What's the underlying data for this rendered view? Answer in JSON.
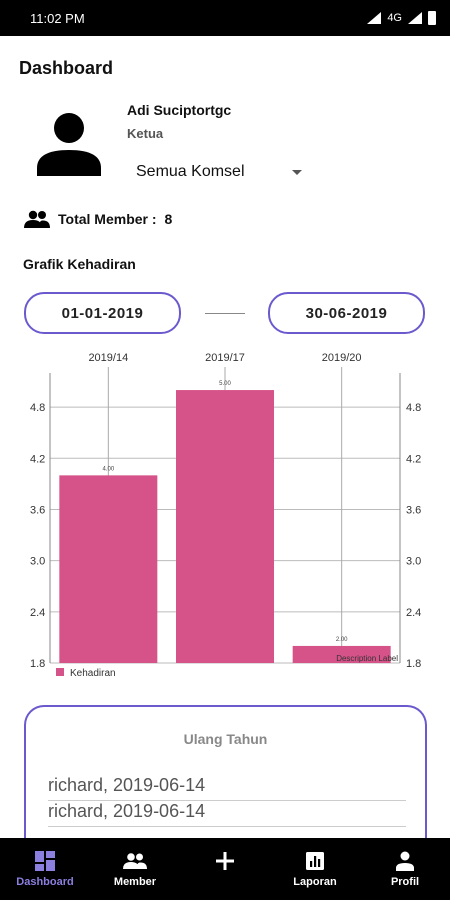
{
  "status_bar": {
    "time": "11:02 PM",
    "network": "4G"
  },
  "page_title": "Dashboard",
  "user": {
    "name": "Adi Suciptortgc",
    "role": "Ketua"
  },
  "komsel_select": {
    "value": "Semua Komsel"
  },
  "total_member": {
    "label": "Total Member :",
    "value": "8"
  },
  "grafik": {
    "title": "Grafik Kehadiran",
    "start_date": "01-01-2019",
    "end_date": "30-06-2019"
  },
  "chart_data": {
    "type": "bar",
    "categories": [
      "2019/14",
      "2019/17",
      "2019/20"
    ],
    "series": [
      {
        "name": "Kehadiran",
        "values": [
          4.0,
          5.0,
          2.0
        ],
        "color": "#d6538a"
      }
    ],
    "value_labels": [
      "4.00",
      "5.00",
      "2.00"
    ],
    "yticks": [
      "1.8",
      "2.4",
      "3.0",
      "3.6",
      "4.2",
      "4.8"
    ],
    "ylim": [
      1.8,
      5.2
    ],
    "description": "Description Label",
    "legend": "bottom-left",
    "grid": true
  },
  "birthday": {
    "title": "Ulang Tahun",
    "items": [
      "richard, 2019-06-14",
      "richard, 2019-06-14"
    ]
  },
  "nav": {
    "items": [
      {
        "label": "Dashboard",
        "icon": "dashboard-icon"
      },
      {
        "label": "Member",
        "icon": "people-icon"
      },
      {
        "label": "",
        "icon": "add-icon"
      },
      {
        "label": "Laporan",
        "icon": "chart-icon"
      },
      {
        "label": "Profil",
        "icon": "person-icon"
      }
    ],
    "active_color": "#8b7fe0"
  }
}
